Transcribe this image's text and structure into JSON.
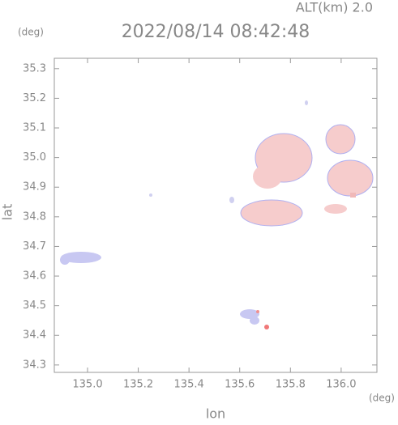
{
  "chart_data": {
    "type": "map",
    "title": "2022/08/14 08:42:48",
    "subtitle": "ALT(km) 2.0",
    "x_label": "lon",
    "y_label": "lat",
    "x_unit": "(deg)",
    "y_unit": "(deg)",
    "xlim": [
      134.869,
      136.141
    ],
    "ylim": [
      34.275,
      35.335
    ],
    "xticks": [
      {
        "value": 135,
        "label": "135.0"
      },
      135.2,
      135.4,
      135.6,
      135.8,
      {
        "value": 136,
        "label": "136.0"
      }
    ],
    "yticks": [
      34.3,
      34.4,
      34.5,
      34.6,
      34.7,
      34.8,
      34.9,
      {
        "value": 35,
        "label": "35.0"
      },
      35.1,
      35.2,
      35.3
    ]
  }
}
